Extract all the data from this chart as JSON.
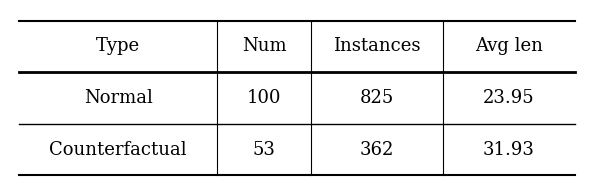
{
  "headers": [
    "Type",
    "Num",
    "Instances",
    "Avg len"
  ],
  "rows": [
    [
      "Normal",
      "100",
      "825",
      "23.95"
    ],
    [
      "Counterfactual",
      "53",
      "362",
      "31.93"
    ]
  ],
  "figsize": [
    5.94,
    1.96
  ],
  "dpi": 100,
  "background_color": "#ffffff",
  "font_size": 13
}
